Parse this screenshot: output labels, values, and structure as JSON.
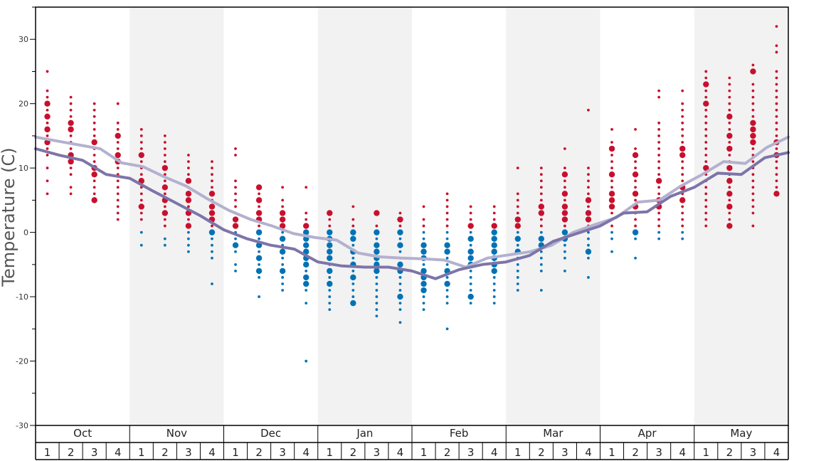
{
  "chart_data": {
    "type": "scatter",
    "title": "",
    "ylabel": "Temperature (C)",
    "ylim": [
      -30,
      35
    ],
    "yticks": [
      -30,
      -20,
      -10,
      0,
      10,
      20,
      30
    ],
    "months": [
      "Oct",
      "Nov",
      "Dec",
      "Jan",
      "Feb",
      "Mar",
      "Apr",
      "May"
    ],
    "weeks": [
      "1",
      "2",
      "3",
      "4"
    ],
    "colors": {
      "above_freezing": "#c8102e",
      "below_freezing": "#0072b5",
      "line_light": "#b3b1cf",
      "line_dark": "#7d74a8",
      "band_shade": "#f2f2f2"
    },
    "series": [
      {
        "values": [
          14.8,
          14.2,
          13.6,
          13.0,
          10.8,
          10.2,
          8.6,
          7.2,
          5.2,
          3.4,
          2.0,
          1.0,
          -0.2,
          -0.8,
          -1.2,
          -3.2,
          -3.8,
          -4.0,
          -4.1,
          -4.3,
          -5.4,
          -4.0,
          -3.5,
          -3.0,
          -2.0,
          0.0,
          1.2,
          2.3,
          4.7,
          5.0,
          7.2,
          9.0,
          11.0,
          10.7,
          13.2,
          14.8
        ]
      },
      {
        "values": [
          13.0,
          12.0,
          11.2,
          9.0,
          8.4,
          6.4,
          4.5,
          2.6,
          0.4,
          -1.0,
          -2.0,
          -2.6,
          -4.6,
          -5.2,
          -5.4,
          -5.4,
          -6.0,
          -7.2,
          -5.8,
          -5.0,
          -4.6,
          -3.6,
          -1.4,
          -0.2,
          1.0,
          3.0,
          3.2,
          5.6,
          7.0,
          9.2,
          9.0,
          11.6,
          12.4
        ]
      }
    ],
    "points": [
      {
        "week": 1,
        "temps": [
          25,
          22,
          21,
          20,
          19,
          18,
          17,
          16,
          15,
          14,
          13,
          12,
          10,
          8,
          6
        ],
        "big": [
          20,
          18,
          16,
          14
        ]
      },
      {
        "week": 2,
        "temps": [
          21,
          20,
          19,
          18,
          17,
          16,
          15,
          14,
          13,
          12,
          11,
          10,
          9,
          7,
          6
        ],
        "big": [
          17,
          16,
          12,
          11
        ]
      },
      {
        "week": 3,
        "temps": [
          20,
          19,
          18,
          17,
          16,
          15,
          14,
          13,
          12,
          11,
          10,
          9,
          8,
          7,
          6,
          5
        ],
        "big": [
          14,
          10,
          9,
          5
        ]
      },
      {
        "week": 4,
        "temps": [
          20,
          17,
          16,
          15,
          14,
          13,
          12,
          11,
          10,
          9,
          8,
          7,
          6,
          5,
          4,
          3,
          2
        ],
        "big": [
          15,
          12,
          11
        ]
      },
      {
        "week": 5,
        "temps": [
          16,
          15,
          14,
          13,
          12,
          11,
          10,
          9,
          8,
          7,
          6,
          5,
          4,
          3,
          2,
          0,
          -2
        ],
        "big": [
          12,
          8,
          4
        ]
      },
      {
        "week": 6,
        "temps": [
          15,
          14,
          13,
          12,
          11,
          10,
          9,
          8,
          7,
          6,
          5,
          4,
          3,
          2,
          1,
          -1,
          -2
        ],
        "big": [
          10,
          7,
          5,
          3
        ]
      },
      {
        "week": 7,
        "temps": [
          12,
          11,
          10,
          9,
          8,
          7,
          6,
          5,
          4,
          3,
          2,
          1,
          0,
          -1,
          -2,
          -3
        ],
        "big": [
          8,
          6,
          5,
          3,
          1
        ]
      },
      {
        "week": 8,
        "temps": [
          11,
          10,
          9,
          8,
          7,
          6,
          5,
          4,
          3,
          2,
          1,
          0,
          -1,
          -2,
          -3,
          -4,
          -8
        ],
        "big": [
          6,
          4,
          3,
          2,
          0
        ]
      },
      {
        "week": 9,
        "temps": [
          13,
          12,
          8,
          7,
          6,
          5,
          4,
          3,
          2,
          1,
          0,
          -1,
          -2,
          -3,
          -5,
          -6
        ],
        "big": [
          2,
          1,
          -2
        ]
      },
      {
        "week": 10,
        "temps": [
          7,
          6,
          5,
          4,
          3,
          2,
          1,
          0,
          -1,
          -2,
          -3,
          -4,
          -5,
          -6,
          -7,
          -10
        ],
        "big": [
          7,
          5,
          3,
          2,
          0,
          -2,
          -4,
          -6
        ]
      },
      {
        "week": 11,
        "temps": [
          7,
          5,
          4,
          3,
          2,
          1,
          0,
          -1,
          -2,
          -3,
          -4,
          -5,
          -6,
          -7,
          -8,
          -9
        ],
        "big": [
          3,
          2,
          1,
          -1,
          -3,
          -6
        ]
      },
      {
        "week": 12,
        "temps": [
          7,
          3,
          2,
          1,
          0,
          -1,
          -2,
          -3,
          -4,
          -5,
          -6,
          -7,
          -8,
          -9,
          -11,
          -20
        ],
        "big": [
          1,
          0,
          -1,
          -2,
          -3,
          -4,
          -5,
          -7,
          -8
        ]
      },
      {
        "week": 13,
        "temps": [
          3,
          2,
          1,
          0,
          -1,
          -2,
          -3,
          -4,
          -5,
          -6,
          -7,
          -8,
          -9,
          -10,
          -11,
          -12
        ],
        "big": [
          3,
          0,
          -1,
          -2,
          -3,
          -4,
          -6,
          -8
        ]
      },
      {
        "week": 14,
        "temps": [
          4,
          2,
          1,
          0,
          -1,
          -2,
          -3,
          -4,
          -5,
          -6,
          -7,
          -8,
          -9,
          -10,
          -11
        ],
        "big": [
          0,
          -1,
          -3,
          -5,
          -7,
          -11
        ]
      },
      {
        "week": 15,
        "temps": [
          3,
          1,
          0,
          -1,
          -2,
          -3,
          -4,
          -5,
          -6,
          -7,
          -8,
          -9,
          -10,
          -11,
          -12,
          -13
        ],
        "big": [
          3,
          0,
          -2,
          -3,
          -4,
          -5,
          -6
        ]
      },
      {
        "week": 16,
        "temps": [
          3,
          2,
          1,
          0,
          -1,
          -2,
          -3,
          -4,
          -5,
          -6,
          -7,
          -8,
          -9,
          -10,
          -11,
          -12,
          -14
        ],
        "big": [
          2,
          0,
          -2,
          -5,
          -6,
          -10
        ]
      },
      {
        "week": 17,
        "temps": [
          4,
          2,
          1,
          0,
          -1,
          -2,
          -3,
          -4,
          -5,
          -6,
          -7,
          -8,
          -9,
          -10,
          -11,
          -12
        ],
        "big": [
          -2,
          -3,
          -4,
          -6,
          -7,
          -8,
          -9
        ]
      },
      {
        "week": 18,
        "temps": [
          6,
          5,
          4,
          3,
          2,
          1,
          0,
          -1,
          -2,
          -3,
          -4,
          -5,
          -6,
          -7,
          -8,
          -9,
          -10,
          -11,
          -15
        ],
        "big": [
          -2,
          -3,
          -6,
          -8
        ]
      },
      {
        "week": 19,
        "temps": [
          4,
          3,
          2,
          1,
          0,
          -1,
          -2,
          -3,
          -4,
          -5,
          -6,
          -7,
          -8,
          -9,
          -10,
          -11
        ],
        "big": [
          1,
          -1,
          -3,
          -4,
          -5,
          -10
        ]
      },
      {
        "week": 20,
        "temps": [
          4,
          3,
          2,
          1,
          0,
          -1,
          -2,
          -3,
          -4,
          -5,
          -6,
          -7,
          -8,
          -9,
          -10,
          -11
        ],
        "big": [
          1,
          0,
          -1,
          -2,
          -3,
          -4,
          -5,
          -6
        ]
      },
      {
        "week": 21,
        "temps": [
          10,
          6,
          5,
          4,
          3,
          2,
          1,
          0,
          -1,
          -2,
          -3,
          -4,
          -5,
          -6,
          -7,
          -8,
          -9
        ],
        "big": [
          2,
          1,
          -1,
          -3
        ]
      },
      {
        "week": 22,
        "temps": [
          10,
          9,
          8,
          7,
          6,
          5,
          4,
          3,
          2,
          1,
          0,
          -1,
          -2,
          -3,
          -4,
          -5,
          -6,
          -9
        ],
        "big": [
          4,
          3,
          -1,
          -2
        ]
      },
      {
        "week": 23,
        "temps": [
          13,
          10,
          9,
          8,
          7,
          6,
          5,
          4,
          3,
          2,
          1,
          0,
          -1,
          -2,
          -3,
          -4,
          -6
        ],
        "big": [
          9,
          6,
          4,
          3,
          2,
          0,
          -1
        ]
      },
      {
        "week": 24,
        "temps": [
          19,
          10,
          9,
          8,
          7,
          6,
          5,
          4,
          3,
          2,
          1,
          0,
          -1,
          -2,
          -3,
          -4,
          -7
        ],
        "big": [
          5,
          3,
          2,
          -3
        ]
      },
      {
        "week": 25,
        "temps": [
          16,
          14,
          13,
          12,
          11,
          10,
          9,
          8,
          7,
          6,
          5,
          4,
          3,
          2,
          1,
          0,
          -1,
          -3
        ],
        "big": [
          13,
          9,
          6,
          5,
          4
        ]
      },
      {
        "week": 26,
        "temps": [
          16,
          13,
          12,
          11,
          10,
          9,
          8,
          7,
          6,
          5,
          4,
          3,
          2,
          1,
          0,
          -1,
          -4
        ],
        "big": [
          12,
          9,
          6,
          4,
          0
        ]
      },
      {
        "week": 27,
        "temps": [
          22,
          21,
          17,
          16,
          15,
          14,
          13,
          12,
          11,
          10,
          9,
          8,
          7,
          6,
          5,
          4,
          3,
          2,
          1,
          0,
          -1
        ],
        "big": [
          8,
          5,
          4
        ]
      },
      {
        "week": 28,
        "temps": [
          22,
          20,
          19,
          18,
          17,
          16,
          15,
          14,
          13,
          12,
          11,
          10,
          9,
          8,
          7,
          6,
          5,
          4,
          3,
          2,
          1,
          0,
          -1
        ],
        "big": [
          13,
          12,
          7,
          5
        ]
      },
      {
        "week": 29,
        "temps": [
          25,
          24,
          23,
          22,
          21,
          20,
          19,
          18,
          17,
          16,
          15,
          14,
          13,
          12,
          11,
          10,
          9,
          8,
          7,
          6,
          5,
          4,
          3,
          2,
          1
        ],
        "big": [
          23,
          20,
          10
        ]
      },
      {
        "week": 30,
        "temps": [
          24,
          23,
          22,
          21,
          20,
          19,
          18,
          17,
          16,
          15,
          14,
          13,
          12,
          11,
          10,
          9,
          8,
          7,
          6,
          5,
          4,
          3,
          2,
          1
        ],
        "big": [
          18,
          15,
          13,
          10,
          8,
          6,
          4,
          1
        ]
      },
      {
        "week": 31,
        "temps": [
          26,
          25,
          23,
          22,
          21,
          20,
          19,
          18,
          17,
          16,
          15,
          14,
          13,
          12,
          11,
          10,
          9,
          8,
          7,
          6,
          5,
          4,
          3,
          1
        ],
        "big": [
          25,
          17,
          16,
          15,
          14
        ]
      },
      {
        "week": 32,
        "temps": [
          32,
          29,
          28,
          25,
          24,
          23,
          22,
          21,
          20,
          19,
          18,
          17,
          16,
          15,
          14,
          13,
          12,
          11,
          10,
          9,
          8,
          7,
          6
        ],
        "big": [
          14,
          12,
          6
        ]
      }
    ]
  }
}
